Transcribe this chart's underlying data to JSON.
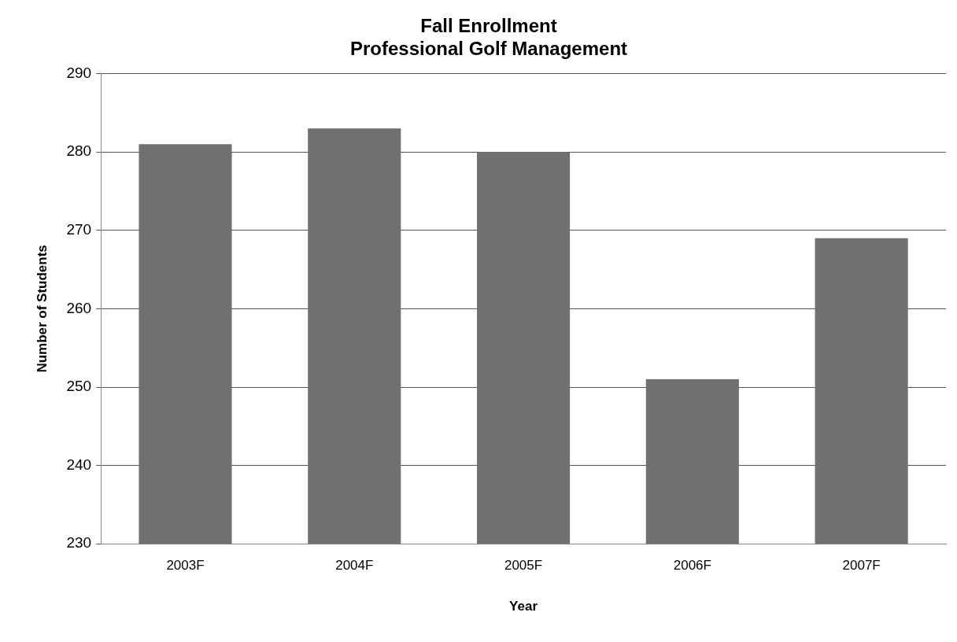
{
  "chart_data": {
    "type": "bar",
    "title": "Fall Enrollment",
    "subtitle": "Professional Golf Management",
    "xlabel": "Year",
    "ylabel": "Number of Students",
    "categories": [
      "2003F",
      "2004F",
      "2005F",
      "2006F",
      "2007F"
    ],
    "values": [
      281,
      283,
      280,
      251,
      269
    ],
    "color": "#707070",
    "ylim": [
      230,
      290
    ],
    "yticks": [
      230,
      240,
      250,
      260,
      270,
      280,
      290
    ],
    "grid": "y",
    "legend": false
  }
}
